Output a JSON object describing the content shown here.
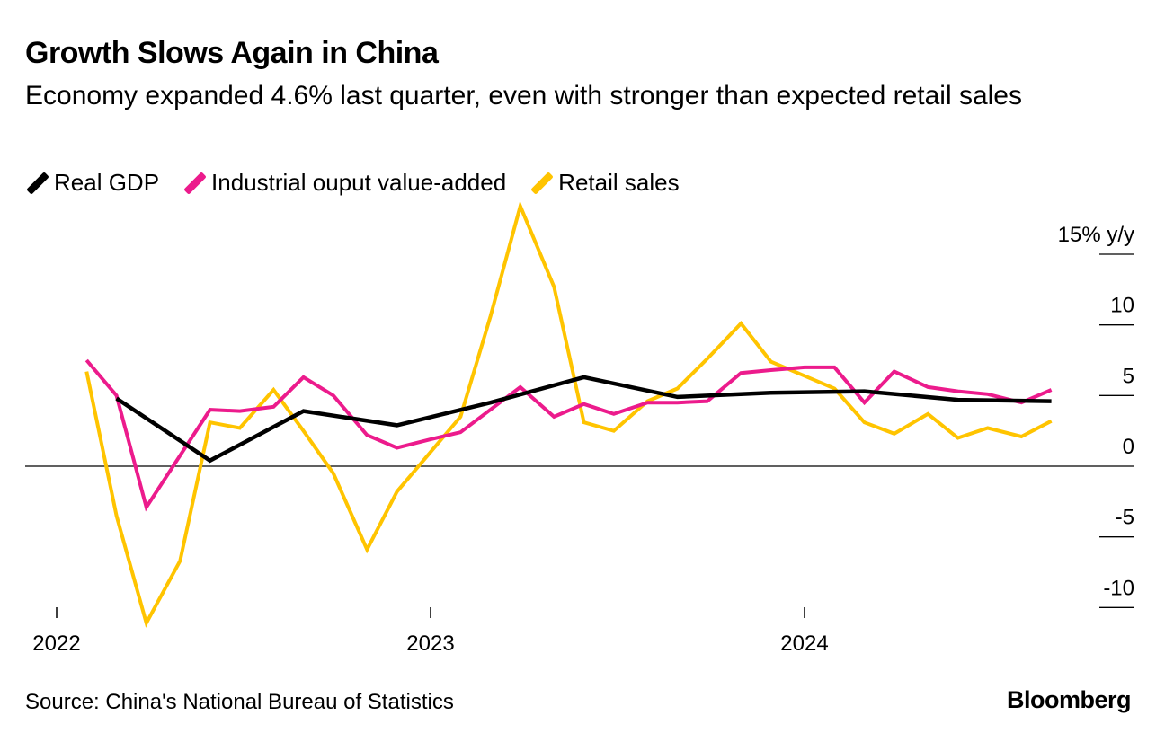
{
  "header": {
    "title": "Growth Slows Again in China",
    "subtitle": "Economy expanded 4.6% last quarter, even with stronger than expected retail sales"
  },
  "footer": {
    "source": "Source: China's National Bureau of Statistics",
    "brand": "Bloomberg"
  },
  "chart_data": {
    "type": "line",
    "title": "Growth Slows Again in China",
    "xlabel": "",
    "ylabel": "% y/y",
    "ylim": [
      -10.5,
      15
    ],
    "y_ticks": [
      {
        "value": 15,
        "label": "15% y/y"
      },
      {
        "value": 10,
        "label": "10"
      },
      {
        "value": 5,
        "label": "5"
      },
      {
        "value": 0,
        "label": "0"
      },
      {
        "value": -5,
        "label": "-5"
      },
      {
        "value": -10,
        "label": "-10"
      }
    ],
    "x_ticks": [
      {
        "value": 2022.0,
        "label": "2022"
      },
      {
        "value": 2023.0,
        "label": "2023"
      },
      {
        "value": 2024.0,
        "label": "2024"
      }
    ],
    "xlim": [
      2021.92,
      2024.77
    ],
    "legend_position": "top-left",
    "series": [
      {
        "name": "Real GDP",
        "color": "#000000",
        "x": [
          2022.16,
          2022.41,
          2022.66,
          2022.91,
          2023.16,
          2023.41,
          2023.66,
          2023.91,
          2024.16,
          2024.41,
          2024.66
        ],
        "values": [
          4.8,
          0.4,
          3.9,
          2.9,
          4.5,
          6.3,
          4.9,
          5.2,
          5.3,
          4.7,
          4.6
        ]
      },
      {
        "name": "Industrial ouput value-added",
        "color": "#ec1b8c",
        "x": [
          2022.08,
          2022.16,
          2022.24,
          2022.41,
          2022.49,
          2022.58,
          2022.66,
          2022.74,
          2022.83,
          2022.91,
          2023.0,
          2023.08,
          2023.24,
          2023.33,
          2023.41,
          2023.49,
          2023.58,
          2023.66,
          2023.74,
          2023.83,
          2023.91,
          2024.0,
          2024.08,
          2024.16,
          2024.24,
          2024.33,
          2024.41,
          2024.49,
          2024.58,
          2024.66
        ],
        "values": [
          7.5,
          5.0,
          -2.9,
          4.0,
          3.9,
          4.2,
          6.3,
          5.0,
          2.2,
          1.3,
          1.9,
          2.4,
          5.6,
          3.5,
          4.4,
          3.7,
          4.5,
          4.5,
          4.6,
          6.6,
          6.8,
          7.0,
          7.0,
          4.5,
          6.7,
          5.6,
          5.3,
          5.1,
          4.5,
          5.4
        ]
      },
      {
        "name": "Retail sales",
        "color": "#ffc400",
        "x": [
          2022.08,
          2022.16,
          2022.24,
          2022.33,
          2022.41,
          2022.49,
          2022.58,
          2022.66,
          2022.74,
          2022.83,
          2022.91,
          2023.08,
          2023.16,
          2023.24,
          2023.33,
          2023.41,
          2023.49,
          2023.58,
          2023.66,
          2023.74,
          2023.83,
          2023.91,
          2024.08,
          2024.16,
          2024.24,
          2024.33,
          2024.41,
          2024.49,
          2024.58,
          2024.66
        ],
        "values": [
          6.7,
          -3.5,
          -11.1,
          -6.7,
          3.1,
          2.7,
          5.4,
          2.5,
          -0.5,
          -5.9,
          -1.8,
          3.5,
          10.6,
          18.4,
          12.7,
          3.1,
          2.5,
          4.6,
          5.5,
          7.6,
          10.1,
          7.4,
          5.5,
          3.1,
          2.3,
          3.7,
          2.0,
          2.7,
          2.1,
          3.2
        ]
      }
    ]
  }
}
